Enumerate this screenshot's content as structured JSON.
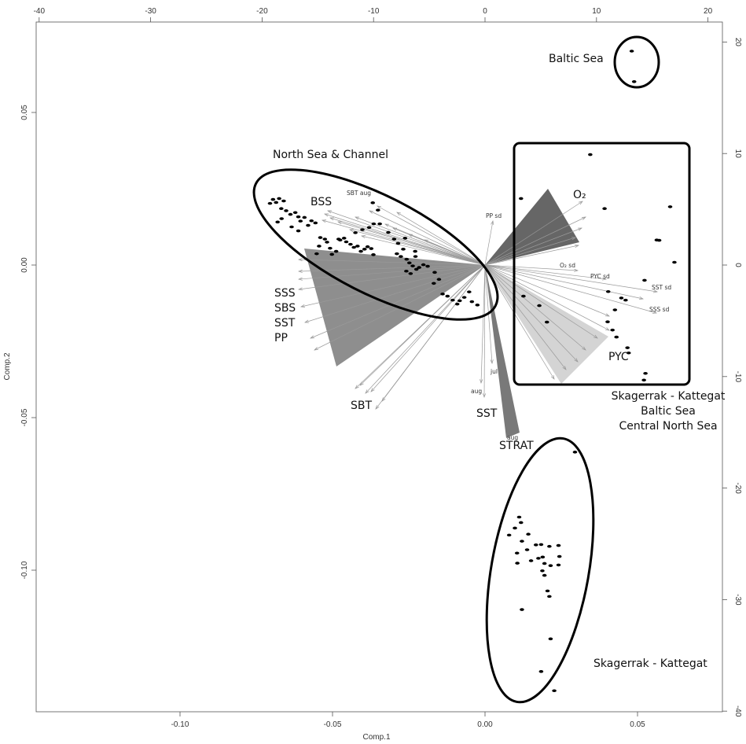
{
  "chart_data": {
    "type": "scatter",
    "xlabel": "Comp.1",
    "ylabel": "Comp.2",
    "xlim": [
      -0.145,
      0.08
    ],
    "ylim": [
      -0.145,
      0.079
    ],
    "x_ticks": [
      "-0.10",
      "-0.05",
      "0.00",
      "0.05"
    ],
    "y_ticks": [
      "-0.10",
      "-0.05",
      "0.00",
      "0.05"
    ],
    "top_ticks": [
      "-40",
      "-30",
      "-20",
      "-10",
      "0",
      "10",
      "20"
    ],
    "right_ticks": [
      "20",
      "10",
      "0",
      "-10",
      "-20",
      "-30",
      "-40"
    ],
    "regions": [
      {
        "label": "Baltic Sea"
      },
      {
        "label": "North Sea & Channel"
      },
      {
        "label": "Skagerrak - Kattegat\nBaltic Sea\nCentral North Sea"
      },
      {
        "label": "Skagerrak - Kattegat"
      }
    ],
    "vector_groups": [
      "BSS",
      "O₂",
      "SSS\nSBS\nSST\nPP",
      "PYC",
      "SBT",
      "SST",
      "STRAT"
    ],
    "vector_small_labels": [
      "SBT aug",
      "PP sd",
      "O₂ sd",
      "PYC sd",
      "SST sd",
      "SSS sd",
      "jul",
      "aug",
      "aug"
    ],
    "points": [
      [
        -0.0695,
        0.0215
      ],
      [
        -0.0685,
        0.0205
      ],
      [
        -0.0675,
        0.0218
      ],
      [
        -0.066,
        0.021
      ],
      [
        -0.0705,
        0.0202
      ],
      [
        -0.0668,
        0.0185
      ],
      [
        -0.0652,
        0.0178
      ],
      [
        -0.0638,
        0.0166
      ],
      [
        -0.0622,
        0.0172
      ],
      [
        -0.0612,
        0.0158
      ],
      [
        -0.0605,
        0.0144
      ],
      [
        -0.0592,
        0.0156
      ],
      [
        -0.058,
        0.013
      ],
      [
        -0.0612,
        0.0112
      ],
      [
        -0.0667,
        0.0152
      ],
      [
        -0.068,
        0.0141
      ],
      [
        -0.0634,
        0.0125
      ],
      [
        -0.0569,
        0.0145
      ],
      [
        -0.0556,
        0.0138
      ],
      [
        -0.054,
        0.009
      ],
      [
        -0.0525,
        0.0085
      ],
      [
        -0.0518,
        0.0075
      ],
      [
        -0.0544,
        0.0062
      ],
      [
        -0.0508,
        0.0055
      ],
      [
        -0.0552,
        0.0037
      ],
      [
        -0.0502,
        0.0035
      ],
      [
        -0.0488,
        0.0045
      ],
      [
        -0.048,
        0.0085
      ],
      [
        -0.0475,
        0.0082
      ],
      [
        -0.0462,
        0.0088
      ],
      [
        -0.0455,
        0.0076
      ],
      [
        -0.0441,
        0.0068
      ],
      [
        -0.043,
        0.0058
      ],
      [
        -0.0418,
        0.0062
      ],
      [
        -0.0407,
        0.0045
      ],
      [
        -0.0395,
        0.0052
      ],
      [
        -0.0385,
        0.006
      ],
      [
        -0.0373,
        0.0054
      ],
      [
        -0.0366,
        0.0034
      ],
      [
        -0.0425,
        0.0106
      ],
      [
        -0.0402,
        0.0116
      ],
      [
        -0.038,
        0.0123
      ],
      [
        -0.0365,
        0.0135
      ],
      [
        -0.0317,
        0.0107
      ],
      [
        -0.0368,
        0.0204
      ],
      [
        -0.0351,
        0.018
      ],
      [
        -0.0345,
        0.0135
      ],
      [
        -0.0298,
        0.0085
      ],
      [
        -0.0285,
        0.0071
      ],
      [
        -0.0268,
        0.0052
      ],
      [
        -0.0276,
        0.0028
      ],
      [
        -0.0257,
        0.0019
      ],
      [
        -0.0248,
        0.0007
      ],
      [
        -0.0237,
        -0.0003
      ],
      [
        -0.0216,
        -0.0008
      ],
      [
        -0.0258,
        -0.002
      ],
      [
        -0.0244,
        -0.0028
      ],
      [
        -0.0225,
        -0.0014
      ],
      [
        -0.0229,
        0.0045
      ],
      [
        -0.0228,
        0.0028
      ],
      [
        -0.0202,
        0.0001
      ],
      [
        -0.0188,
        -0.0004
      ],
      [
        -0.0165,
        -0.0024
      ],
      [
        -0.0139,
        -0.0095
      ],
      [
        -0.0123,
        -0.0102
      ],
      [
        -0.0106,
        -0.0115
      ],
      [
        -0.0091,
        -0.0128
      ],
      [
        -0.0083,
        -0.0117
      ],
      [
        -0.0068,
        -0.0106
      ],
      [
        -0.0043,
        -0.012
      ],
      [
        -0.0025,
        -0.0131
      ],
      [
        -0.0052,
        -0.0088
      ],
      [
        -0.0168,
        -0.006
      ],
      [
        -0.0151,
        -0.0047
      ],
      [
        -0.0262,
        0.0088
      ],
      [
        -0.0289,
        0.0037
      ],
      [
        0.0345,
        0.0362
      ],
      [
        0.0118,
        0.0218
      ],
      [
        0.0392,
        0.0185
      ],
      [
        0.0607,
        0.0191
      ],
      [
        0.0563,
        0.0082
      ],
      [
        0.0571,
        0.0081
      ],
      [
        0.0621,
        0.0009
      ],
      [
        0.0523,
        -0.005
      ],
      [
        0.0461,
        -0.0115
      ],
      [
        0.0404,
        -0.0087
      ],
      [
        0.0447,
        -0.0108
      ],
      [
        0.0426,
        -0.0147
      ],
      [
        0.0402,
        -0.0186
      ],
      [
        0.0418,
        -0.0213
      ],
      [
        0.0431,
        -0.0236
      ],
      [
        0.0467,
        -0.0271
      ],
      [
        0.0471,
        -0.0288
      ],
      [
        0.0526,
        -0.0355
      ],
      [
        0.0521,
        -0.0377
      ],
      [
        0.0178,
        -0.0133
      ],
      [
        0.0203,
        -0.0187
      ],
      [
        0.0126,
        -0.0102
      ],
      [
        0.0481,
        0.0701
      ],
      [
        0.0489,
        0.0601
      ],
      [
        0.0295,
        -0.0613
      ],
      [
        0.0112,
        -0.0826
      ],
      [
        0.0098,
        -0.0862
      ],
      [
        0.0118,
        -0.0844
      ],
      [
        0.0079,
        -0.0885
      ],
      [
        0.0142,
        -0.0882
      ],
      [
        0.0121,
        -0.0905
      ],
      [
        0.0138,
        -0.0933
      ],
      [
        0.0167,
        -0.0917
      ],
      [
        0.0184,
        -0.0916
      ],
      [
        0.0211,
        -0.0922
      ],
      [
        0.0241,
        -0.0919
      ],
      [
        0.0244,
        -0.0955
      ],
      [
        0.0241,
        -0.0983
      ],
      [
        0.0189,
        -0.0957
      ],
      [
        0.0195,
        -0.0978
      ],
      [
        0.0195,
        -0.1017
      ],
      [
        0.0105,
        -0.0944
      ],
      [
        0.0106,
        -0.0977
      ],
      [
        0.0151,
        -0.0969
      ],
      [
        0.0175,
        -0.0961
      ],
      [
        0.0188,
        -0.1002
      ],
      [
        0.0215,
        -0.0985
      ],
      [
        0.0205,
        -0.1068
      ],
      [
        0.0211,
        -0.1086
      ],
      [
        0.0121,
        -0.1129
      ],
      [
        0.0215,
        -0.1225
      ],
      [
        0.0184,
        -0.1332
      ],
      [
        0.0227,
        -0.1395
      ]
    ]
  }
}
